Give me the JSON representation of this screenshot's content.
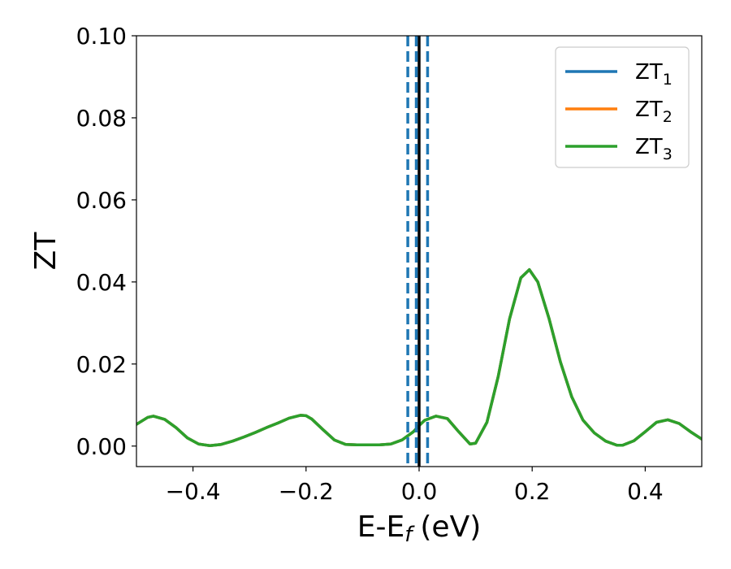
{
  "chart_data": {
    "type": "line",
    "xlabel": "E-E",
    "xlabel_sub": "f",
    "xlabel_unit": "(eV)",
    "ylabel": "ZT",
    "xlim": [
      -0.5,
      0.5
    ],
    "ylim": [
      -0.005,
      0.1
    ],
    "xticks": [
      -0.4,
      -0.2,
      0.0,
      0.2,
      0.4
    ],
    "xtick_labels": [
      "−0.4",
      "−0.2",
      "0.0",
      "0.2",
      "0.4"
    ],
    "yticks": [
      0.0,
      0.02,
      0.04,
      0.06,
      0.08,
      0.1
    ],
    "ytick_labels": [
      "0.00",
      "0.02",
      "0.04",
      "0.06",
      "0.08",
      "0.10"
    ],
    "grid": false,
    "legend_position": "top-right",
    "x": [
      -0.5,
      -0.48,
      -0.47,
      -0.45,
      -0.43,
      -0.41,
      -0.39,
      -0.37,
      -0.35,
      -0.33,
      -0.31,
      -0.29,
      -0.27,
      -0.25,
      -0.23,
      -0.21,
      -0.2,
      -0.19,
      -0.17,
      -0.15,
      -0.13,
      -0.11,
      -0.09,
      -0.07,
      -0.05,
      -0.03,
      -0.01,
      0.0,
      0.01,
      0.03,
      0.05,
      0.07,
      0.09,
      0.1,
      0.12,
      0.14,
      0.16,
      0.18,
      0.195,
      0.21,
      0.23,
      0.25,
      0.27,
      0.29,
      0.31,
      0.33,
      0.35,
      0.36,
      0.38,
      0.4,
      0.42,
      0.44,
      0.46,
      0.48,
      0.5
    ],
    "series": [
      {
        "name": "ZT",
        "sub": "1",
        "color": "#1f77b4",
        "values": [
          0.0053,
          0.007,
          0.0073,
          0.0065,
          0.0045,
          0.002,
          0.0005,
          0.0001,
          0.0004,
          0.0012,
          0.0022,
          0.0033,
          0.0045,
          0.0056,
          0.0068,
          0.0075,
          0.0074,
          0.0066,
          0.004,
          0.0015,
          0.0004,
          0.0003,
          0.0003,
          0.0003,
          0.0005,
          0.0015,
          0.0035,
          0.005,
          0.0063,
          0.0073,
          0.0067,
          0.0035,
          0.0005,
          0.0007,
          0.0058,
          0.017,
          0.031,
          0.041,
          0.043,
          0.04,
          0.031,
          0.0205,
          0.012,
          0.0063,
          0.0032,
          0.0012,
          0.0002,
          0.0002,
          0.0013,
          0.0035,
          0.0058,
          0.0064,
          0.0055,
          0.0035,
          0.0017
        ]
      },
      {
        "name": "ZT",
        "sub": "2",
        "color": "#ff7f0e",
        "values": [
          0.0053,
          0.007,
          0.0073,
          0.0065,
          0.0045,
          0.002,
          0.0005,
          0.0001,
          0.0004,
          0.0012,
          0.0022,
          0.0033,
          0.0045,
          0.0056,
          0.0068,
          0.0075,
          0.0074,
          0.0066,
          0.004,
          0.0015,
          0.0004,
          0.0003,
          0.0003,
          0.0003,
          0.0005,
          0.0015,
          0.0035,
          0.005,
          0.0063,
          0.0073,
          0.0067,
          0.0035,
          0.0005,
          0.0007,
          0.0058,
          0.017,
          0.031,
          0.041,
          0.043,
          0.04,
          0.031,
          0.0205,
          0.012,
          0.0063,
          0.0032,
          0.0012,
          0.0002,
          0.0002,
          0.0013,
          0.0035,
          0.0058,
          0.0064,
          0.0055,
          0.0035,
          0.0017
        ]
      },
      {
        "name": "ZT",
        "sub": "3",
        "color": "#2ca02c",
        "values": [
          0.0053,
          0.007,
          0.0073,
          0.0065,
          0.0045,
          0.002,
          0.0005,
          0.0001,
          0.0004,
          0.0012,
          0.0022,
          0.0033,
          0.0045,
          0.0056,
          0.0068,
          0.0075,
          0.0074,
          0.0066,
          0.004,
          0.0015,
          0.0004,
          0.0003,
          0.0003,
          0.0003,
          0.0005,
          0.0015,
          0.0035,
          0.005,
          0.0063,
          0.0073,
          0.0067,
          0.0035,
          0.0005,
          0.0007,
          0.0058,
          0.017,
          0.031,
          0.041,
          0.043,
          0.04,
          0.031,
          0.0205,
          0.012,
          0.0063,
          0.0032,
          0.0012,
          0.0002,
          0.0002,
          0.0013,
          0.0035,
          0.0058,
          0.0064,
          0.0055,
          0.0035,
          0.0017
        ]
      }
    ],
    "vlines": [
      {
        "x": 0.0,
        "color": "#000000",
        "style": "solid"
      },
      {
        "x": -0.02,
        "color": "#1f77b4",
        "style": "dashed"
      },
      {
        "x": -0.005,
        "color": "#1f77b4",
        "style": "dashed"
      },
      {
        "x": 0.015,
        "color": "#1f77b4",
        "style": "dashed"
      }
    ]
  }
}
